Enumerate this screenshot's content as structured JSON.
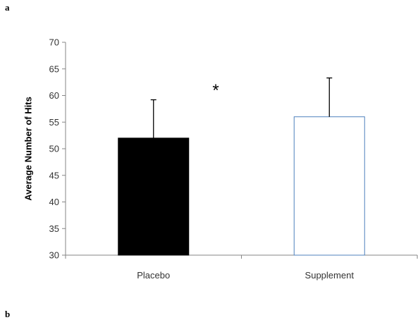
{
  "figure": {
    "panel_label": "a",
    "panel_label_next": "b"
  },
  "chart_data": {
    "type": "bar",
    "categories": [
      "Placebo",
      "Supplement"
    ],
    "series": [
      {
        "values": [
          52,
          56
        ],
        "errors": [
          7.2,
          7.3
        ],
        "fill_colors": [
          "#000000",
          "#ffffff"
        ],
        "stroke_colors": [
          "#000000",
          "#4f81bd"
        ]
      }
    ],
    "title": "",
    "xlabel": "",
    "ylabel": "Average  Number of Hits",
    "ylim": [
      30,
      70
    ],
    "yticks": [
      30,
      35,
      40,
      45,
      50,
      55,
      60,
      65,
      70
    ],
    "grid": false,
    "legend": "none",
    "annotations": [
      {
        "text": "*",
        "category": "Placebo"
      }
    ]
  }
}
